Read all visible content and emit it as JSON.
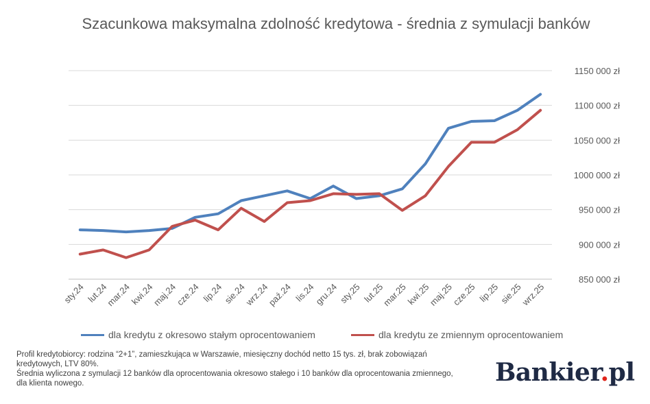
{
  "chart_data": {
    "type": "line",
    "title": "Szacunkowa maksymalna zdolność kredytowa - średnia z symulacji banków",
    "xlabel": "",
    "ylabel": "",
    "categories": [
      "sty.24",
      "lut.24",
      "mar.24",
      "kwi.24",
      "maj.24",
      "cze.24",
      "lip.24",
      "sie.24",
      "wrz.24",
      "paź.24",
      "lis.24",
      "gru.24",
      "sty.25",
      "lut.25",
      "mar.25",
      "kwi.25",
      "maj.25",
      "cze.25",
      "lip.25",
      "sie.25",
      "wrz.25"
    ],
    "y_tick_labels": [
      "850 000 zł",
      "900 000 zł",
      "950 000 zł",
      "1000 000 zł",
      "1050 000 zł",
      "1100 000 zł",
      "1150 000 zł"
    ],
    "ylim": [
      850000,
      1150000
    ],
    "grid": true,
    "legend_position": "bottom",
    "series": [
      {
        "name": "dla kredytu z okresowo stałym oprocentowaniem",
        "color": "#4f81bd",
        "values": [
          921000,
          920000,
          918000,
          920000,
          923000,
          939000,
          944000,
          963000,
          970000,
          977000,
          966000,
          984000,
          966000,
          970000,
          980000,
          1016000,
          1067000,
          1077000,
          1078000,
          1093000,
          1116000
        ]
      },
      {
        "name": "dla kredytu ze zmiennym oprocentowaniem",
        "color": "#c0504d",
        "values": [
          886000,
          892000,
          881000,
          892000,
          926000,
          935000,
          921000,
          952000,
          933000,
          960000,
          963000,
          973000,
          972000,
          973000,
          949000,
          970000,
          1012000,
          1047000,
          1047000,
          1065000,
          1093000
        ]
      }
    ]
  },
  "note": {
    "line1": "Profil kredytobiorcy: rodzina “2+1”, zamieszkująca w Warszawie, miesięczny dochód netto 15 tys. zł, brak zobowiązań kredytowych, LTV 80%.",
    "line2": "Średnia wyliczona z symulacji 12 banków dla oprocentowania okresowo stałego i 10 banków dla oprocentowania zmiennego, dla klienta nowego."
  },
  "logo": {
    "text_main": "Bankier",
    "text_dot": ".",
    "text_suffix": "pl"
  }
}
